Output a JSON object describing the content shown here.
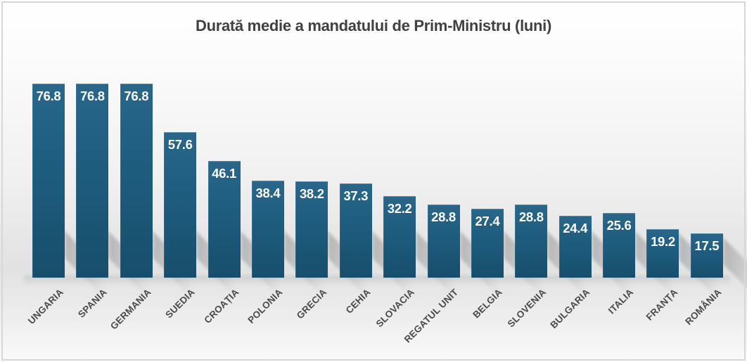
{
  "chart_data": {
    "type": "bar",
    "title": "Durată medie a mandatului de Prim-Ministru (luni)",
    "categories": [
      "UNGARIA",
      "SPANIA",
      "GERMANIA",
      "SUEDIA",
      "CROAȚIA",
      "POLONIA",
      "GRECIA",
      "CEHIA",
      "SLOVACIA",
      "REGATUL UNIT",
      "BELGIA",
      "SLOVENIA",
      "BULGARIA",
      "ITALIA",
      "FRANȚA",
      "ROMÂNIA"
    ],
    "values": [
      76.8,
      76.8,
      76.8,
      57.6,
      46.1,
      38.4,
      38.2,
      37.3,
      32.2,
      28.8,
      27.4,
      28.8,
      24.4,
      25.6,
      19.2,
      17.5
    ],
    "xlabel": "",
    "ylabel": "",
    "ylim": [
      0,
      80
    ],
    "grid": false,
    "legend": false,
    "value_labels_shown": true,
    "bar_color": "#1e5c7e",
    "value_label_color": "#ffffff",
    "category_label_color": "#4a4a4a",
    "title_color": "#414141"
  }
}
